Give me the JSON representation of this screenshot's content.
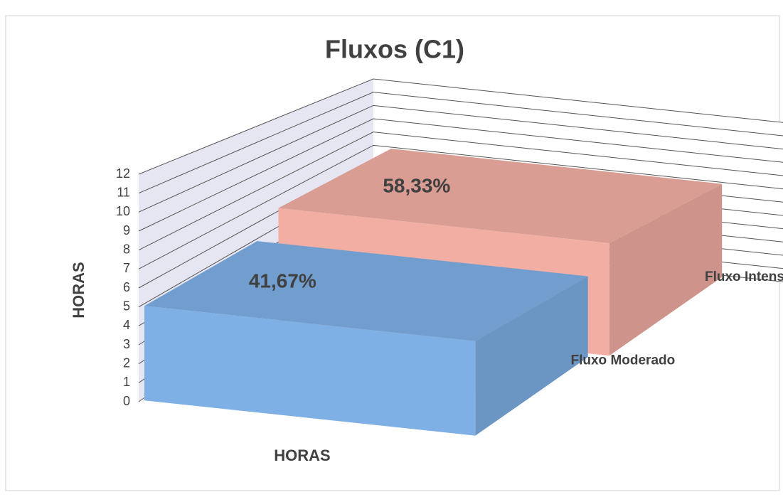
{
  "chart_data": {
    "type": "bar3d",
    "title": "Fluxos (C1)",
    "categories": [
      "HORAS"
    ],
    "ylabel": "HORAS",
    "series": [
      {
        "name": "Fluxo Moderado",
        "color": "#7eb0e6",
        "values": [
          5
        ]
      },
      {
        "name": "Fluxo Intenso",
        "color": "#f2aea3",
        "values": [
          7
        ]
      }
    ],
    "annotations": [
      "41,67%",
      "58,33%"
    ],
    "ylim": [
      0,
      12
    ],
    "yticks": [
      0,
      1,
      2,
      3,
      4,
      5,
      6,
      7,
      8,
      9,
      10,
      11,
      12
    ],
    "grid": true
  }
}
